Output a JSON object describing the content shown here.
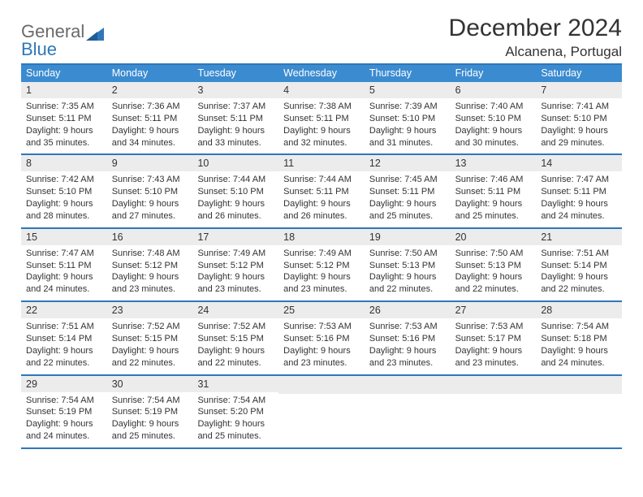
{
  "colors": {
    "header_bg": "#3b8bd0",
    "rule": "#2f77bb",
    "daynum_bg": "#ececec",
    "text": "#333333",
    "logo_gray": "#6a6a6a",
    "logo_blue": "#2f77bb",
    "white": "#ffffff"
  },
  "logo": {
    "word1": "General",
    "word2": "Blue"
  },
  "title": "December 2024",
  "location": "Alcanena, Portugal",
  "weekday_labels": [
    "Sunday",
    "Monday",
    "Tuesday",
    "Wednesday",
    "Thursday",
    "Friday",
    "Saturday"
  ],
  "weeks": [
    [
      {
        "n": "1",
        "sunrise": "Sunrise: 7:35 AM",
        "sunset": "Sunset: 5:11 PM",
        "day1": "Daylight: 9 hours",
        "day2": "and 35 minutes."
      },
      {
        "n": "2",
        "sunrise": "Sunrise: 7:36 AM",
        "sunset": "Sunset: 5:11 PM",
        "day1": "Daylight: 9 hours",
        "day2": "and 34 minutes."
      },
      {
        "n": "3",
        "sunrise": "Sunrise: 7:37 AM",
        "sunset": "Sunset: 5:11 PM",
        "day1": "Daylight: 9 hours",
        "day2": "and 33 minutes."
      },
      {
        "n": "4",
        "sunrise": "Sunrise: 7:38 AM",
        "sunset": "Sunset: 5:11 PM",
        "day1": "Daylight: 9 hours",
        "day2": "and 32 minutes."
      },
      {
        "n": "5",
        "sunrise": "Sunrise: 7:39 AM",
        "sunset": "Sunset: 5:10 PM",
        "day1": "Daylight: 9 hours",
        "day2": "and 31 minutes."
      },
      {
        "n": "6",
        "sunrise": "Sunrise: 7:40 AM",
        "sunset": "Sunset: 5:10 PM",
        "day1": "Daylight: 9 hours",
        "day2": "and 30 minutes."
      },
      {
        "n": "7",
        "sunrise": "Sunrise: 7:41 AM",
        "sunset": "Sunset: 5:10 PM",
        "day1": "Daylight: 9 hours",
        "day2": "and 29 minutes."
      }
    ],
    [
      {
        "n": "8",
        "sunrise": "Sunrise: 7:42 AM",
        "sunset": "Sunset: 5:10 PM",
        "day1": "Daylight: 9 hours",
        "day2": "and 28 minutes."
      },
      {
        "n": "9",
        "sunrise": "Sunrise: 7:43 AM",
        "sunset": "Sunset: 5:10 PM",
        "day1": "Daylight: 9 hours",
        "day2": "and 27 minutes."
      },
      {
        "n": "10",
        "sunrise": "Sunrise: 7:44 AM",
        "sunset": "Sunset: 5:10 PM",
        "day1": "Daylight: 9 hours",
        "day2": "and 26 minutes."
      },
      {
        "n": "11",
        "sunrise": "Sunrise: 7:44 AM",
        "sunset": "Sunset: 5:11 PM",
        "day1": "Daylight: 9 hours",
        "day2": "and 26 minutes."
      },
      {
        "n": "12",
        "sunrise": "Sunrise: 7:45 AM",
        "sunset": "Sunset: 5:11 PM",
        "day1": "Daylight: 9 hours",
        "day2": "and 25 minutes."
      },
      {
        "n": "13",
        "sunrise": "Sunrise: 7:46 AM",
        "sunset": "Sunset: 5:11 PM",
        "day1": "Daylight: 9 hours",
        "day2": "and 25 minutes."
      },
      {
        "n": "14",
        "sunrise": "Sunrise: 7:47 AM",
        "sunset": "Sunset: 5:11 PM",
        "day1": "Daylight: 9 hours",
        "day2": "and 24 minutes."
      }
    ],
    [
      {
        "n": "15",
        "sunrise": "Sunrise: 7:47 AM",
        "sunset": "Sunset: 5:11 PM",
        "day1": "Daylight: 9 hours",
        "day2": "and 24 minutes."
      },
      {
        "n": "16",
        "sunrise": "Sunrise: 7:48 AM",
        "sunset": "Sunset: 5:12 PM",
        "day1": "Daylight: 9 hours",
        "day2": "and 23 minutes."
      },
      {
        "n": "17",
        "sunrise": "Sunrise: 7:49 AM",
        "sunset": "Sunset: 5:12 PM",
        "day1": "Daylight: 9 hours",
        "day2": "and 23 minutes."
      },
      {
        "n": "18",
        "sunrise": "Sunrise: 7:49 AM",
        "sunset": "Sunset: 5:12 PM",
        "day1": "Daylight: 9 hours",
        "day2": "and 23 minutes."
      },
      {
        "n": "19",
        "sunrise": "Sunrise: 7:50 AM",
        "sunset": "Sunset: 5:13 PM",
        "day1": "Daylight: 9 hours",
        "day2": "and 22 minutes."
      },
      {
        "n": "20",
        "sunrise": "Sunrise: 7:50 AM",
        "sunset": "Sunset: 5:13 PM",
        "day1": "Daylight: 9 hours",
        "day2": "and 22 minutes."
      },
      {
        "n": "21",
        "sunrise": "Sunrise: 7:51 AM",
        "sunset": "Sunset: 5:14 PM",
        "day1": "Daylight: 9 hours",
        "day2": "and 22 minutes."
      }
    ],
    [
      {
        "n": "22",
        "sunrise": "Sunrise: 7:51 AM",
        "sunset": "Sunset: 5:14 PM",
        "day1": "Daylight: 9 hours",
        "day2": "and 22 minutes."
      },
      {
        "n": "23",
        "sunrise": "Sunrise: 7:52 AM",
        "sunset": "Sunset: 5:15 PM",
        "day1": "Daylight: 9 hours",
        "day2": "and 22 minutes."
      },
      {
        "n": "24",
        "sunrise": "Sunrise: 7:52 AM",
        "sunset": "Sunset: 5:15 PM",
        "day1": "Daylight: 9 hours",
        "day2": "and 22 minutes."
      },
      {
        "n": "25",
        "sunrise": "Sunrise: 7:53 AM",
        "sunset": "Sunset: 5:16 PM",
        "day1": "Daylight: 9 hours",
        "day2": "and 23 minutes."
      },
      {
        "n": "26",
        "sunrise": "Sunrise: 7:53 AM",
        "sunset": "Sunset: 5:16 PM",
        "day1": "Daylight: 9 hours",
        "day2": "and 23 minutes."
      },
      {
        "n": "27",
        "sunrise": "Sunrise: 7:53 AM",
        "sunset": "Sunset: 5:17 PM",
        "day1": "Daylight: 9 hours",
        "day2": "and 23 minutes."
      },
      {
        "n": "28",
        "sunrise": "Sunrise: 7:54 AM",
        "sunset": "Sunset: 5:18 PM",
        "day1": "Daylight: 9 hours",
        "day2": "and 24 minutes."
      }
    ],
    [
      {
        "n": "29",
        "sunrise": "Sunrise: 7:54 AM",
        "sunset": "Sunset: 5:19 PM",
        "day1": "Daylight: 9 hours",
        "day2": "and 24 minutes."
      },
      {
        "n": "30",
        "sunrise": "Sunrise: 7:54 AM",
        "sunset": "Sunset: 5:19 PM",
        "day1": "Daylight: 9 hours",
        "day2": "and 25 minutes."
      },
      {
        "n": "31",
        "sunrise": "Sunrise: 7:54 AM",
        "sunset": "Sunset: 5:20 PM",
        "day1": "Daylight: 9 hours",
        "day2": "and 25 minutes."
      },
      {
        "blank": true
      },
      {
        "blank": true
      },
      {
        "blank": true
      },
      {
        "blank": true
      }
    ]
  ]
}
